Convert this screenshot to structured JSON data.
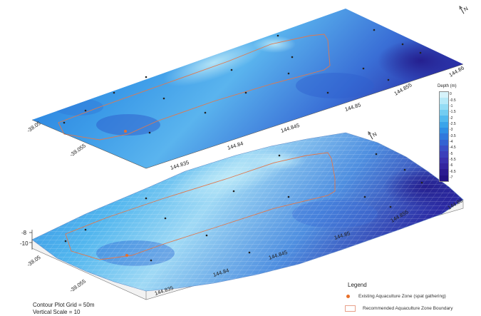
{
  "captions": {
    "grid": "Contour Plot Grid = 50m",
    "vertical_scale": "Vertical Scale = 10"
  },
  "depth_legend": {
    "title": "Depth (m)",
    "levels": [
      "0",
      "-0.5",
      "-1",
      "-1.5",
      "-2",
      "-2.5",
      "-3",
      "-3.5",
      "-4",
      "-4.5",
      "-5",
      "-5.5",
      "-6",
      "-6.5",
      "-7"
    ],
    "colors": [
      "#d6f3fb",
      "#b6e9f8",
      "#93dcf5",
      "#72ccf1",
      "#52b9ee",
      "#3aa4ea",
      "#2f8fe5",
      "#3078dc",
      "#3463d2",
      "#3a4fc6",
      "#3c3fba",
      "#3a31ad",
      "#34259f",
      "#2c1a90",
      "#241283"
    ]
  },
  "legend": {
    "title": "Legend",
    "existing_zone": "Existing Aquaculture Zone (spat gathering)",
    "recommended_zone": "Recommended Aquaculture Zone Boundary"
  },
  "contour_plot": {
    "lat_ticks": [
      "-38.05",
      "-38.055"
    ],
    "lon_ticks": [
      "144.835",
      "144.84",
      "144.845",
      "144.85",
      "144.855",
      "144.86"
    ],
    "north_label": "N"
  },
  "surface_plot": {
    "z_ticks": [
      "-8",
      "-10"
    ],
    "lat_ticks": [
      "-38.05",
      "-38.055"
    ],
    "lon_ticks": [
      "144.835",
      "144.84",
      "144.845",
      "144.85",
      "144.855",
      "144.86"
    ],
    "north_label": "N"
  },
  "icons": {
    "north_arrow": "north-arrow-icon"
  }
}
